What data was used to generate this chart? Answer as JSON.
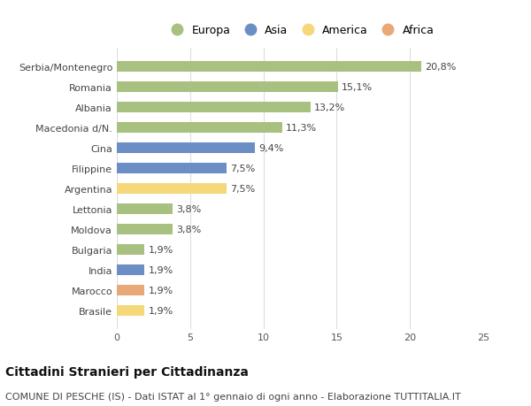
{
  "categories": [
    "Serbia/Montenegro",
    "Romania",
    "Albania",
    "Macedonia d/N.",
    "Cina",
    "Filippine",
    "Argentina",
    "Lettonia",
    "Moldova",
    "Bulgaria",
    "India",
    "Marocco",
    "Brasile"
  ],
  "values": [
    20.8,
    15.1,
    13.2,
    11.3,
    9.4,
    7.5,
    7.5,
    3.8,
    3.8,
    1.9,
    1.9,
    1.9,
    1.9
  ],
  "labels": [
    "20,8%",
    "15,1%",
    "13,2%",
    "11,3%",
    "9,4%",
    "7,5%",
    "7,5%",
    "3,8%",
    "3,8%",
    "1,9%",
    "1,9%",
    "1,9%",
    "1,9%"
  ],
  "continents": [
    "Europa",
    "Europa",
    "Europa",
    "Europa",
    "Asia",
    "Asia",
    "America",
    "Europa",
    "Europa",
    "Europa",
    "Asia",
    "Africa",
    "America"
  ],
  "continent_colors": {
    "Europa": "#a8c080",
    "Asia": "#6b8fc4",
    "America": "#f5d87a",
    "Africa": "#e8a878"
  },
  "legend_order": [
    "Europa",
    "Asia",
    "America",
    "Africa"
  ],
  "title": "Cittadini Stranieri per Cittadinanza",
  "subtitle": "COMUNE DI PESCHE (IS) - Dati ISTAT al 1° gennaio di ogni anno - Elaborazione TUTTITALIA.IT",
  "xlim": [
    0,
    25
  ],
  "xticks": [
    0,
    5,
    10,
    15,
    20,
    25
  ],
  "background_color": "#ffffff",
  "grid_color": "#dddddd",
  "bar_height": 0.55,
  "title_fontsize": 10,
  "subtitle_fontsize": 8,
  "label_fontsize": 8,
  "tick_fontsize": 8,
  "legend_fontsize": 9
}
